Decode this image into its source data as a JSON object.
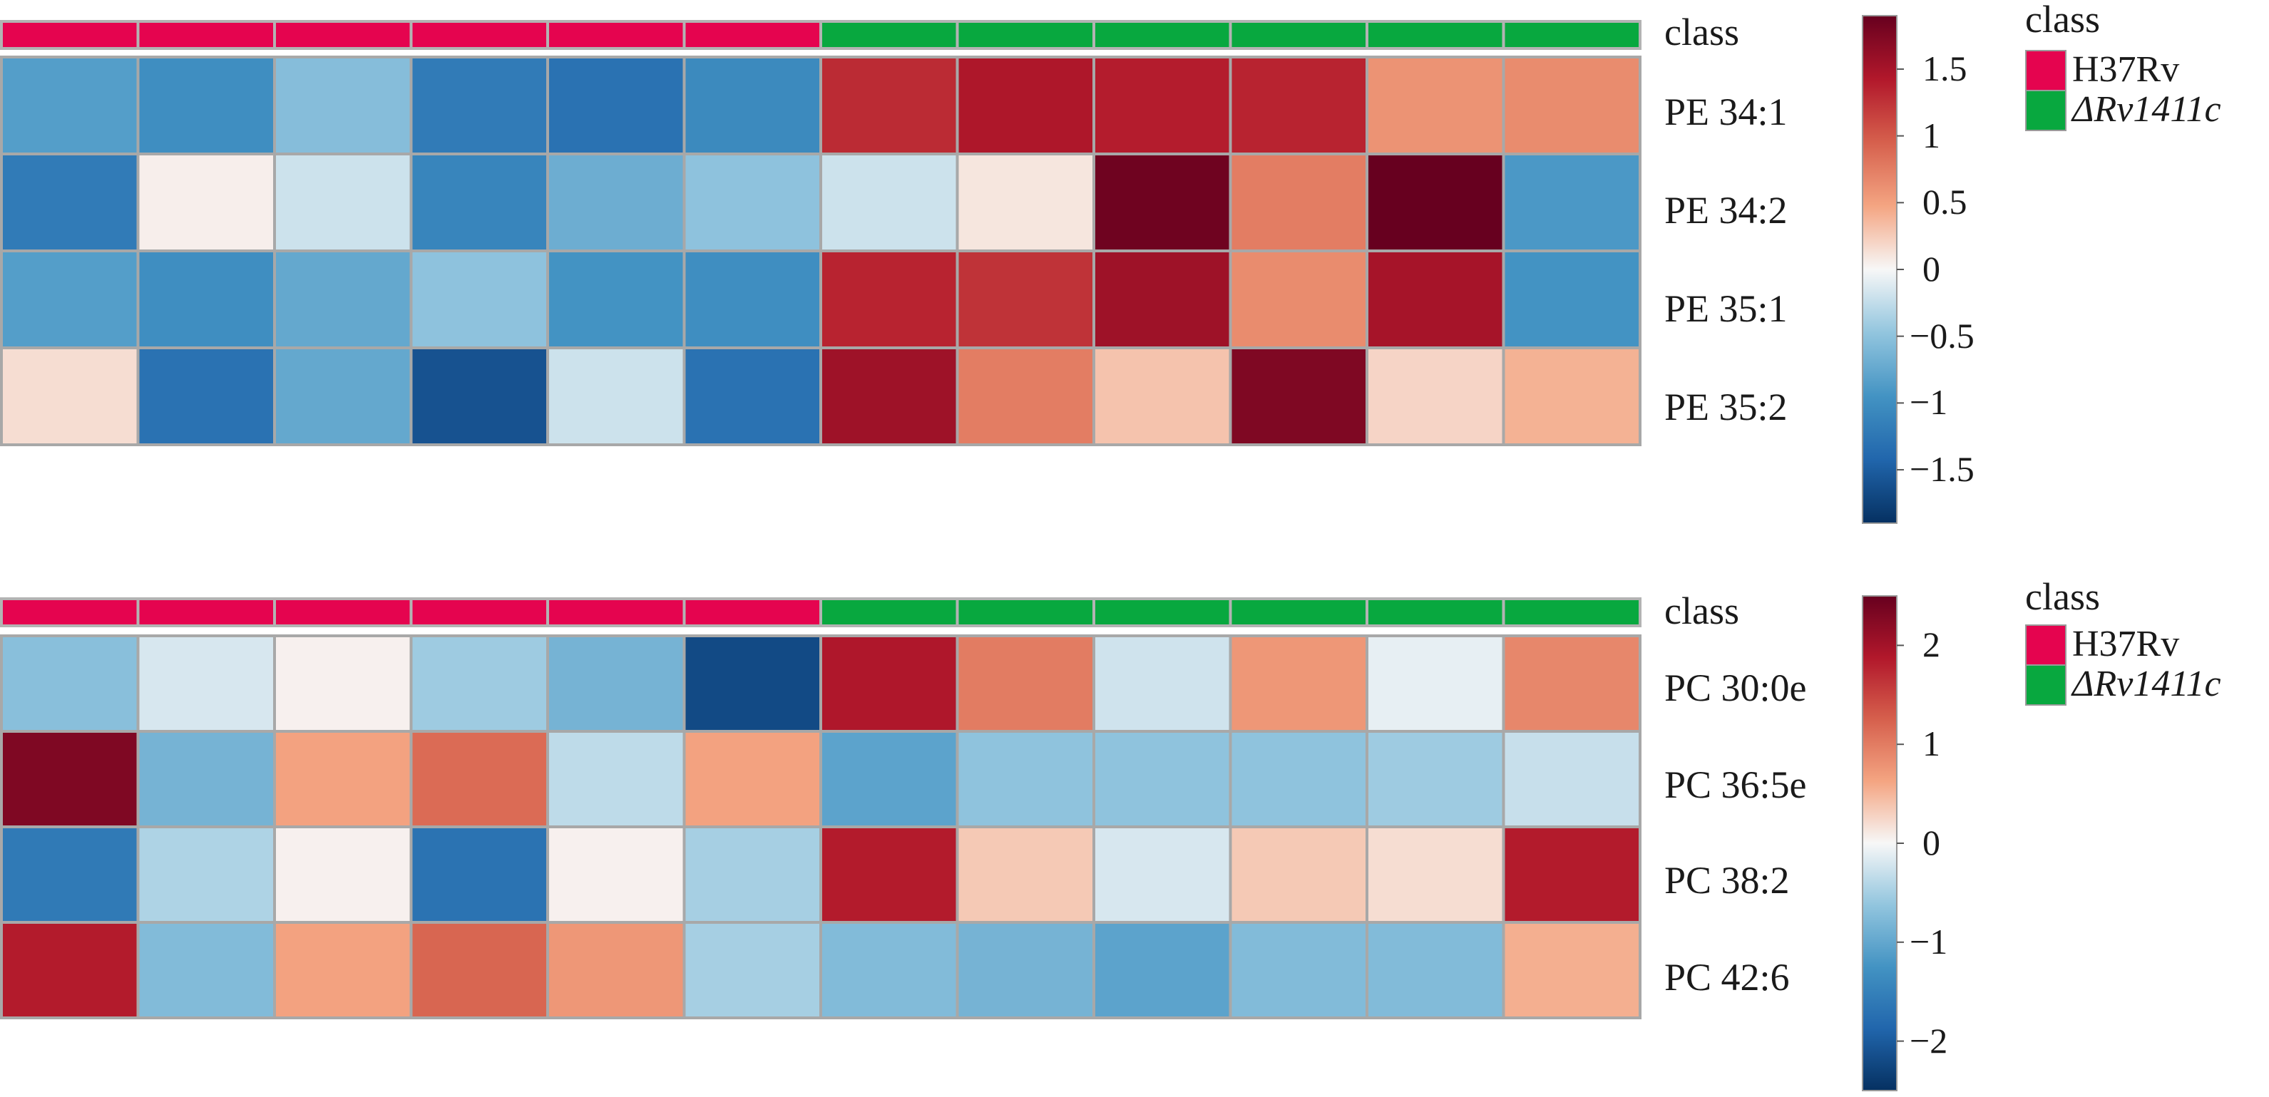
{
  "chart_data": [
    {
      "type": "heatmap",
      "annotation_label": "class",
      "columns_class": [
        "H37Rv",
        "H37Rv",
        "H37Rv",
        "H37Rv",
        "H37Rv",
        "H37Rv",
        "ΔRv1411c",
        "ΔRv1411c",
        "ΔRv1411c",
        "ΔRv1411c",
        "ΔRv1411c",
        "ΔRv1411c"
      ],
      "rows": [
        "PE 34:1",
        "PE 34:2",
        "PE 35:1",
        "PE 35:2"
      ],
      "values": [
        [
          -0.85,
          -1.0,
          -0.55,
          -1.2,
          -1.3,
          -1.05,
          1.3,
          1.45,
          1.4,
          1.35,
          0.6,
          0.65
        ],
        [
          -1.2,
          0.05,
          -0.2,
          -1.1,
          -0.7,
          -0.5,
          -0.2,
          0.1,
          1.85,
          0.75,
          1.9,
          -0.9
        ],
        [
          -0.85,
          -1.0,
          -0.75,
          -0.5,
          -0.95,
          -1.0,
          1.35,
          1.25,
          1.55,
          0.65,
          1.5,
          -0.95
        ],
        [
          0.15,
          -1.3,
          -0.75,
          -1.6,
          -0.2,
          -1.3,
          1.55,
          0.75,
          0.3,
          1.75,
          0.2,
          0.4
        ]
      ],
      "scale": {
        "min": -1.9,
        "max": 1.9,
        "ticks": [
          1.5,
          1,
          0.5,
          0,
          -0.5,
          -1,
          -1.5
        ]
      },
      "legend": {
        "title": "class",
        "entries": [
          "H37Rv",
          "ΔRv1411c"
        ],
        "colors": [
          "#e5044f",
          "#08a83f"
        ]
      }
    },
    {
      "type": "heatmap",
      "annotation_label": "class",
      "columns_class": [
        "H37Rv",
        "H37Rv",
        "H37Rv",
        "H37Rv",
        "H37Rv",
        "H37Rv",
        "ΔRv1411c",
        "ΔRv1411c",
        "ΔRv1411c",
        "ΔRv1411c",
        "ΔRv1411c",
        "ΔRv1411c"
      ],
      "rows": [
        "PC 30:0e",
        "PC 36:5e",
        "PC 38:2",
        "PC 42:6"
      ],
      "values": [
        [
          -0.7,
          -0.2,
          0.05,
          -0.55,
          -0.85,
          -2.2,
          1.9,
          1.0,
          -0.25,
          0.75,
          -0.1,
          0.9
        ],
        [
          2.3,
          -0.85,
          0.65,
          1.15,
          -0.35,
          0.65,
          -1.05,
          -0.65,
          -0.65,
          -0.65,
          -0.55,
          -0.3
        ],
        [
          -1.6,
          -0.45,
          0.05,
          -1.7,
          0.05,
          -0.5,
          1.85,
          0.35,
          -0.2,
          0.35,
          0.2,
          1.85
        ],
        [
          1.85,
          -0.75,
          0.65,
          1.2,
          0.75,
          -0.5,
          -0.75,
          -0.85,
          -1.05,
          -0.75,
          -0.75,
          0.55
        ]
      ],
      "scale": {
        "min": -2.5,
        "max": 2.5,
        "ticks": [
          2,
          1,
          0,
          -1,
          -2
        ]
      },
      "legend": {
        "title": "class",
        "entries": [
          "H37Rv",
          "ΔRv1411c"
        ],
        "colors": [
          "#e5044f",
          "#08a83f"
        ]
      }
    }
  ]
}
